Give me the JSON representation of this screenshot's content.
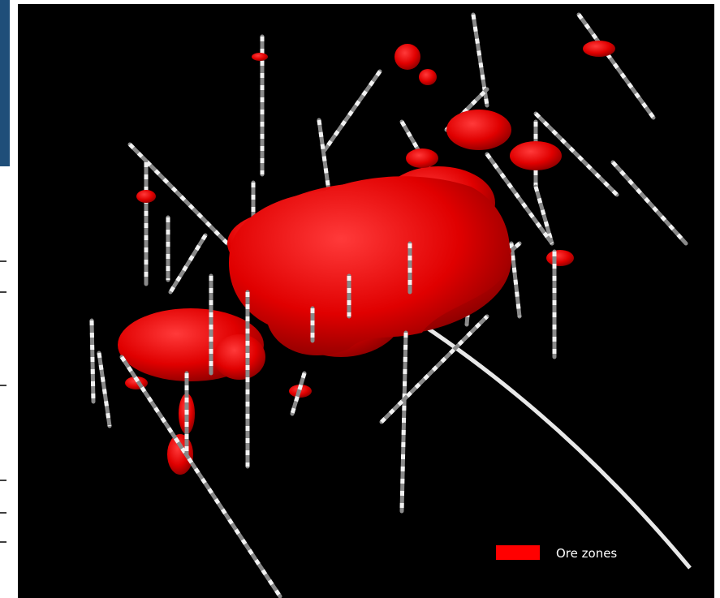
{
  "legend": {
    "label": "Ore zones"
  }
}
